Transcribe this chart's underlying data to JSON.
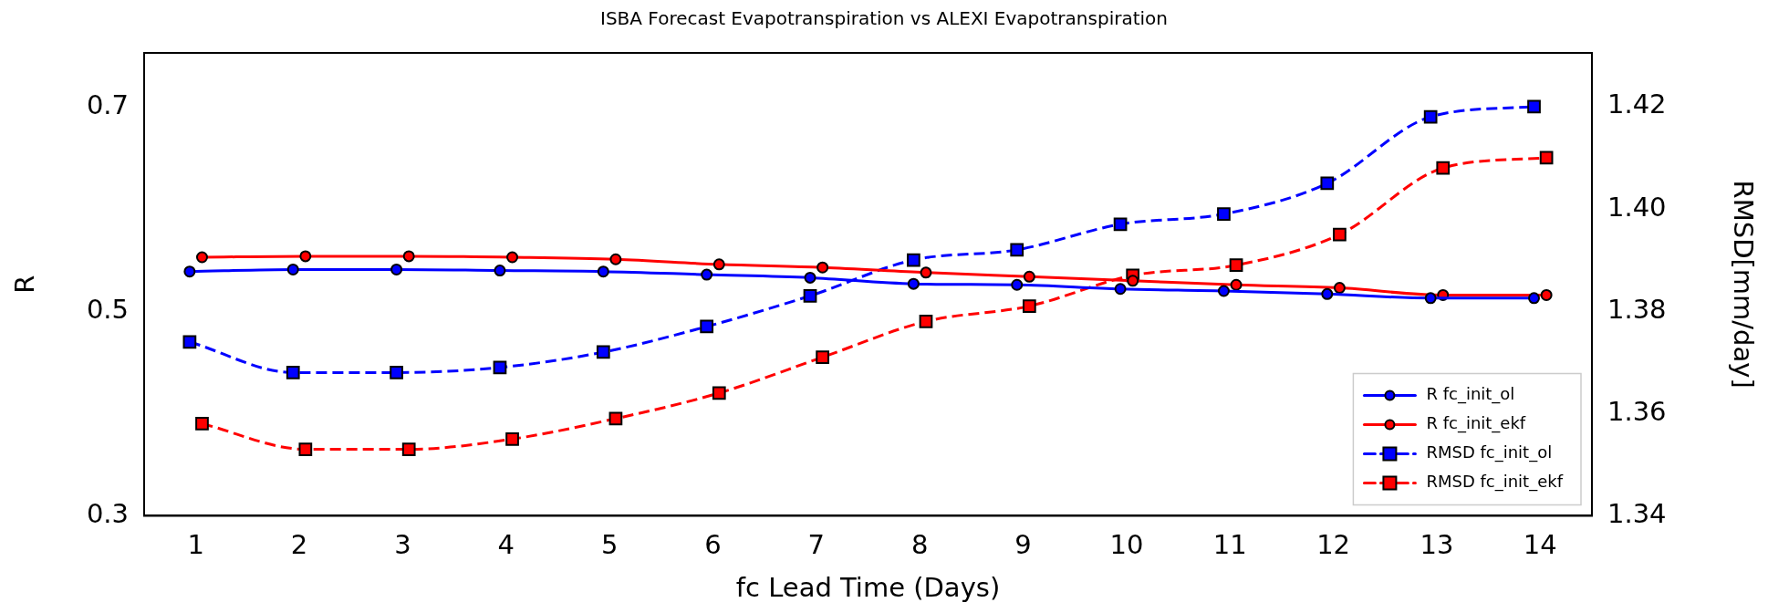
{
  "chart_data": {
    "type": "line",
    "title": "ISBA Forecast Evapotranspiration vs ALEXI Evapotranspiration",
    "xlabel": "fc Lead Time (Days)",
    "ylabel": "R",
    "y2label": "RMSD[mm/day]",
    "xlim": [
      0.5,
      14.5
    ],
    "xticks": [
      1,
      2,
      3,
      4,
      5,
      6,
      7,
      8,
      9,
      10,
      11,
      12,
      13,
      14
    ],
    "ylim": [
      0.3,
      0.753
    ],
    "yticks": [
      {
        "value": 0.3,
        "label": "0.3"
      },
      {
        "value": 0.5,
        "label": "0.5"
      },
      {
        "value": 0.7,
        "label": "0.7"
      }
    ],
    "y2lim": [
      1.34,
      1.4305
    ],
    "y2ticks": [
      {
        "value": 1.34,
        "label": "1.34"
      },
      {
        "value": 1.36,
        "label": "1.36"
      },
      {
        "value": 1.38,
        "label": "1.38"
      },
      {
        "value": 1.4,
        "label": "1.40"
      },
      {
        "value": 1.42,
        "label": "1.42"
      }
    ],
    "grid": false,
    "legend": "bottom right",
    "series": [
      {
        "name": "R fc_init_ol",
        "color": "#0000ff",
        "marker": "circle",
        "line_style": "solid",
        "x": [
          0.94,
          1.94,
          2.94,
          3.94,
          4.94,
          5.94,
          6.94,
          7.94,
          8.94,
          9.94,
          10.94,
          11.94,
          12.94,
          13.94
        ],
        "values": [
          0.539,
          0.541,
          0.541,
          0.54,
          0.539,
          0.536,
          0.533,
          0.527,
          0.526,
          0.522,
          0.52,
          0.517,
          0.513,
          0.513
        ]
      },
      {
        "name": "R fc_init_ekf",
        "color": "#ff0000",
        "marker": "circle",
        "line_style": "solid",
        "x": [
          1.06,
          2.06,
          3.06,
          4.06,
          5.06,
          6.06,
          7.06,
          8.06,
          9.06,
          10.06,
          11.06,
          12.06,
          13.06,
          14.06
        ],
        "values": [
          0.553,
          0.554,
          0.554,
          0.553,
          0.551,
          0.546,
          0.543,
          0.538,
          0.534,
          0.53,
          0.526,
          0.523,
          0.516,
          0.516
        ]
      },
      {
        "name": "RMSD fc_init_ol",
        "color": "#0000ff",
        "marker": "square",
        "line_style": "dashed",
        "axis": "y2",
        "x": [
          0.94,
          1.94,
          2.94,
          3.94,
          4.94,
          5.94,
          6.94,
          7.94,
          8.94,
          9.94,
          10.94,
          11.94,
          12.94,
          13.94
        ],
        "values": [
          1.374,
          1.368,
          1.368,
          1.369,
          1.372,
          1.377,
          1.383,
          1.39,
          1.392,
          1.397,
          1.399,
          1.405,
          1.418,
          1.42
        ]
      },
      {
        "name": "RMSD fc_init_ekf",
        "color": "#ff0000",
        "marker": "square",
        "line_style": "dashed",
        "axis": "y2",
        "x": [
          1.06,
          2.06,
          3.06,
          4.06,
          5.06,
          6.06,
          7.06,
          8.06,
          9.06,
          10.06,
          11.06,
          12.06,
          13.06,
          14.06
        ],
        "values": [
          1.358,
          1.353,
          1.353,
          1.355,
          1.359,
          1.364,
          1.371,
          1.378,
          1.381,
          1.387,
          1.389,
          1.395,
          1.408,
          1.41
        ]
      }
    ]
  }
}
